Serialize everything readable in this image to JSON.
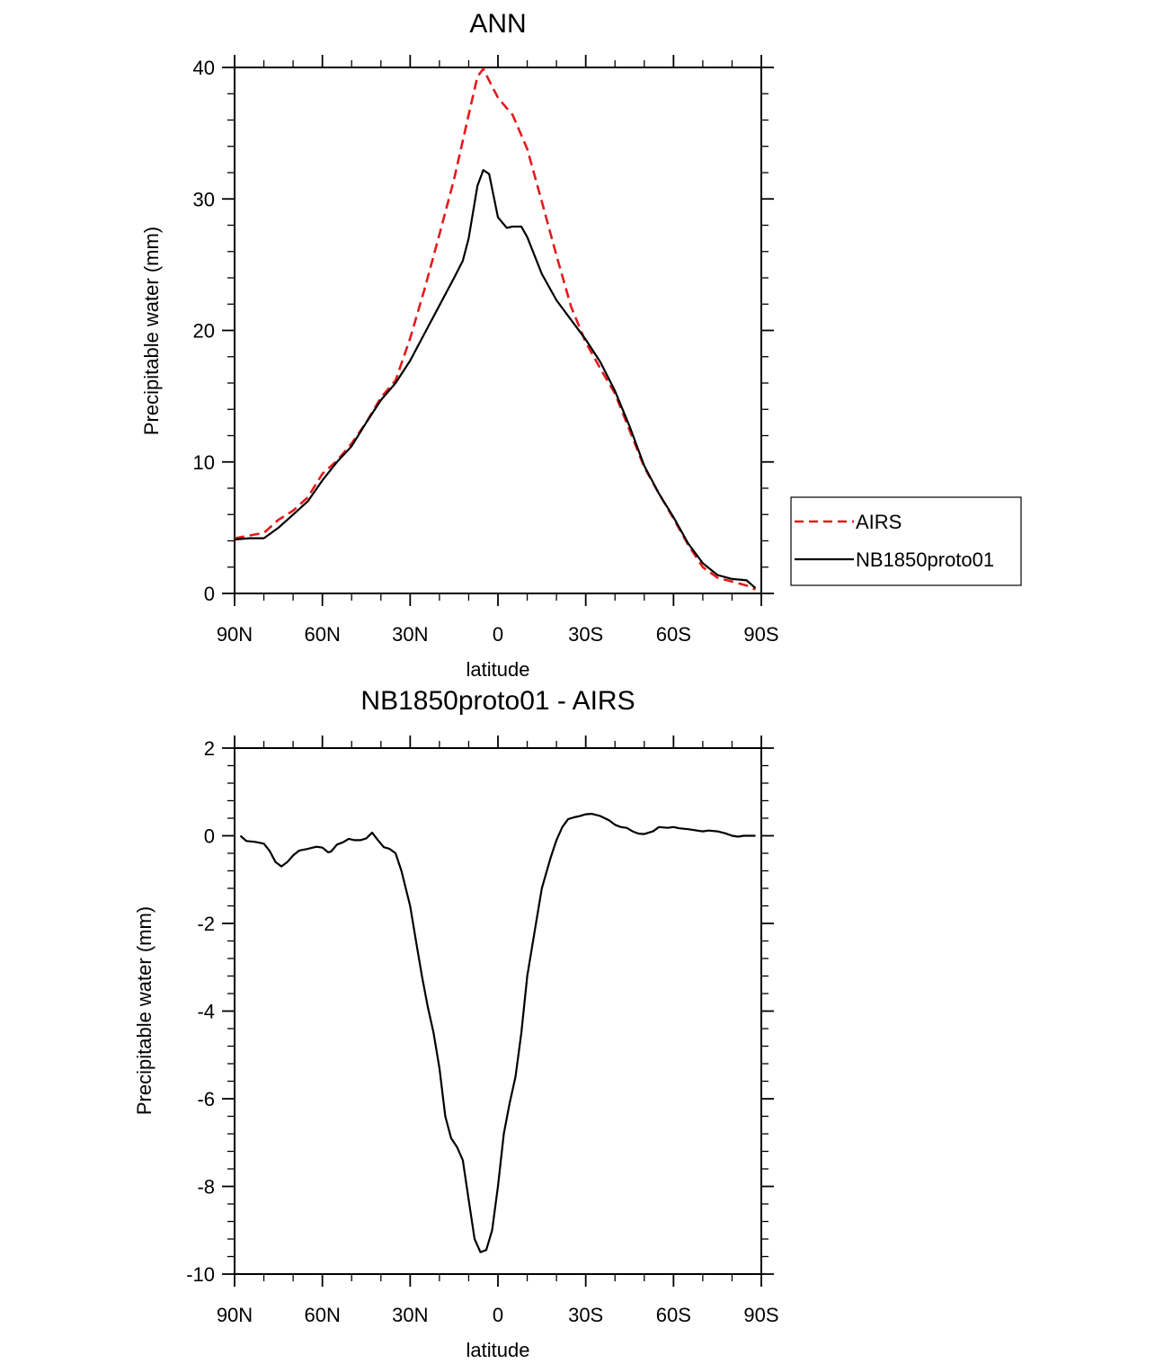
{
  "chart_data": [
    {
      "type": "line",
      "title": "ANN",
      "xlabel": "latitude",
      "ylabel": "Precipitable water (mm)",
      "xlim": [
        90,
        -90
      ],
      "ylim": [
        0,
        40
      ],
      "xticks": [
        {
          "value": 90,
          "label": "90N"
        },
        {
          "value": 60,
          "label": "60N"
        },
        {
          "value": 30,
          "label": "30N"
        },
        {
          "value": 0,
          "label": "0"
        },
        {
          "value": -30,
          "label": "30S"
        },
        {
          "value": -60,
          "label": "60S"
        },
        {
          "value": -90,
          "label": "90S"
        }
      ],
      "yticks": [
        {
          "value": 0,
          "label": "0"
        },
        {
          "value": 10,
          "label": "10"
        },
        {
          "value": 20,
          "label": "20"
        },
        {
          "value": 30,
          "label": "30"
        },
        {
          "value": 40,
          "label": "40"
        }
      ],
      "legend": {
        "position": "right",
        "entries": [
          "AIRS",
          "NB1850proto01"
        ]
      },
      "series": [
        {
          "name": "AIRS",
          "color": "#e31a1c",
          "dash": true,
          "x": [
            90,
            85,
            80,
            75,
            70,
            65,
            60,
            55,
            50,
            45,
            40,
            35,
            30,
            25,
            20,
            15,
            10,
            7,
            5,
            3,
            0,
            -3,
            -5,
            -10,
            -15,
            -20,
            -25,
            -30,
            -35,
            -40,
            -45,
            -50,
            -55,
            -60,
            -65,
            -70,
            -75,
            -80,
            -85,
            -88
          ],
          "y": [
            4.2,
            4.4,
            4.6,
            5.6,
            6.3,
            7.3,
            9.1,
            10.1,
            11.4,
            13.0,
            14.9,
            16.2,
            19.4,
            23.2,
            27.3,
            31.5,
            36.4,
            39.3,
            39.9,
            39.0,
            37.7,
            36.9,
            36.4,
            33.8,
            29.8,
            25.7,
            21.8,
            19.1,
            17.1,
            15.2,
            12.4,
            9.6,
            7.6,
            5.7,
            3.7,
            2.0,
            1.2,
            0.9,
            0.6,
            0.3
          ]
        },
        {
          "name": "NB1850proto01",
          "color": "#000000",
          "dash": false,
          "x": [
            90,
            85,
            80,
            75,
            70,
            65,
            60,
            55,
            50,
            45,
            40,
            35,
            30,
            25,
            20,
            15,
            12,
            10,
            7,
            5,
            3,
            0,
            -3,
            -5,
            -8,
            -10,
            -15,
            -20,
            -25,
            -30,
            -35,
            -40,
            -45,
            -50,
            -55,
            -60,
            -65,
            -70,
            -75,
            -80,
            -85,
            -88
          ],
          "y": [
            4.1,
            4.2,
            4.2,
            5.0,
            6.0,
            7.0,
            8.6,
            10.0,
            11.2,
            13.0,
            14.7,
            16.0,
            17.7,
            19.8,
            21.9,
            24.0,
            25.3,
            27.0,
            31.0,
            32.2,
            31.9,
            28.6,
            27.8,
            27.9,
            27.9,
            27.1,
            24.3,
            22.3,
            20.8,
            19.3,
            17.6,
            15.4,
            12.7,
            9.7,
            7.6,
            5.8,
            3.8,
            2.3,
            1.4,
            1.1,
            1.0,
            0.4
          ]
        }
      ]
    },
    {
      "type": "line",
      "title": "NB1850proto01 - AIRS",
      "xlabel": "latitude",
      "ylabel": "Precipitable water (mm)",
      "xlim": [
        90,
        -90
      ],
      "ylim": [
        -10,
        2
      ],
      "xticks": [
        {
          "value": 90,
          "label": "90N"
        },
        {
          "value": 60,
          "label": "60N"
        },
        {
          "value": 30,
          "label": "30N"
        },
        {
          "value": 0,
          "label": "0"
        },
        {
          "value": -30,
          "label": "30S"
        },
        {
          "value": -60,
          "label": "60S"
        },
        {
          "value": -90,
          "label": "90S"
        }
      ],
      "yticks": [
        {
          "value": -10,
          "label": "-10"
        },
        {
          "value": -8,
          "label": "-8"
        },
        {
          "value": -6,
          "label": "-6"
        },
        {
          "value": -4,
          "label": "-4"
        },
        {
          "value": -2,
          "label": "-2"
        },
        {
          "value": 0,
          "label": "0"
        },
        {
          "value": 2,
          "label": "2"
        }
      ],
      "series": [
        {
          "name": "NB1850proto01 - AIRS",
          "color": "#000000",
          "dash": false,
          "x": [
            88,
            86,
            83,
            80,
            78,
            76,
            74,
            72,
            70,
            68,
            65,
            62,
            60,
            58,
            57,
            55,
            53,
            51,
            49,
            47,
            45,
            43,
            41,
            39,
            37,
            35,
            33,
            30,
            28,
            26,
            24,
            22,
            20,
            18,
            16,
            14,
            12,
            10,
            8,
            6,
            4,
            2,
            0,
            -2,
            -4,
            -6,
            -8,
            -10,
            -13,
            -15,
            -18,
            -20,
            -22,
            -24,
            -26,
            -28,
            -30,
            -32,
            -35,
            -38,
            -40,
            -42,
            -44,
            -46,
            -48,
            -50,
            -53,
            -55,
            -58,
            -60,
            -62,
            -65,
            -68,
            -70,
            -72,
            -75,
            -78,
            -80,
            -82,
            -84,
            -86,
            -88
          ],
          "y": [
            0.0,
            -0.12,
            -0.14,
            -0.18,
            -0.35,
            -0.6,
            -0.7,
            -0.6,
            -0.45,
            -0.34,
            -0.3,
            -0.25,
            -0.27,
            -0.38,
            -0.36,
            -0.2,
            -0.15,
            -0.07,
            -0.1,
            -0.1,
            -0.06,
            0.07,
            -0.1,
            -0.26,
            -0.3,
            -0.4,
            -0.8,
            -1.6,
            -2.4,
            -3.2,
            -3.9,
            -4.5,
            -5.3,
            -6.4,
            -6.9,
            -7.1,
            -7.4,
            -8.3,
            -9.2,
            -9.5,
            -9.45,
            -9.0,
            -8.0,
            -6.8,
            -6.1,
            -5.5,
            -4.5,
            -3.2,
            -2.0,
            -1.2,
            -0.5,
            -0.1,
            0.2,
            0.38,
            0.42,
            0.45,
            0.49,
            0.5,
            0.45,
            0.35,
            0.25,
            0.2,
            0.18,
            0.1,
            0.05,
            0.04,
            0.1,
            0.2,
            0.18,
            0.2,
            0.17,
            0.15,
            0.12,
            0.1,
            0.12,
            0.1,
            0.05,
            0.0,
            -0.02,
            0.0,
            0.0,
            0.0
          ]
        }
      ]
    }
  ]
}
